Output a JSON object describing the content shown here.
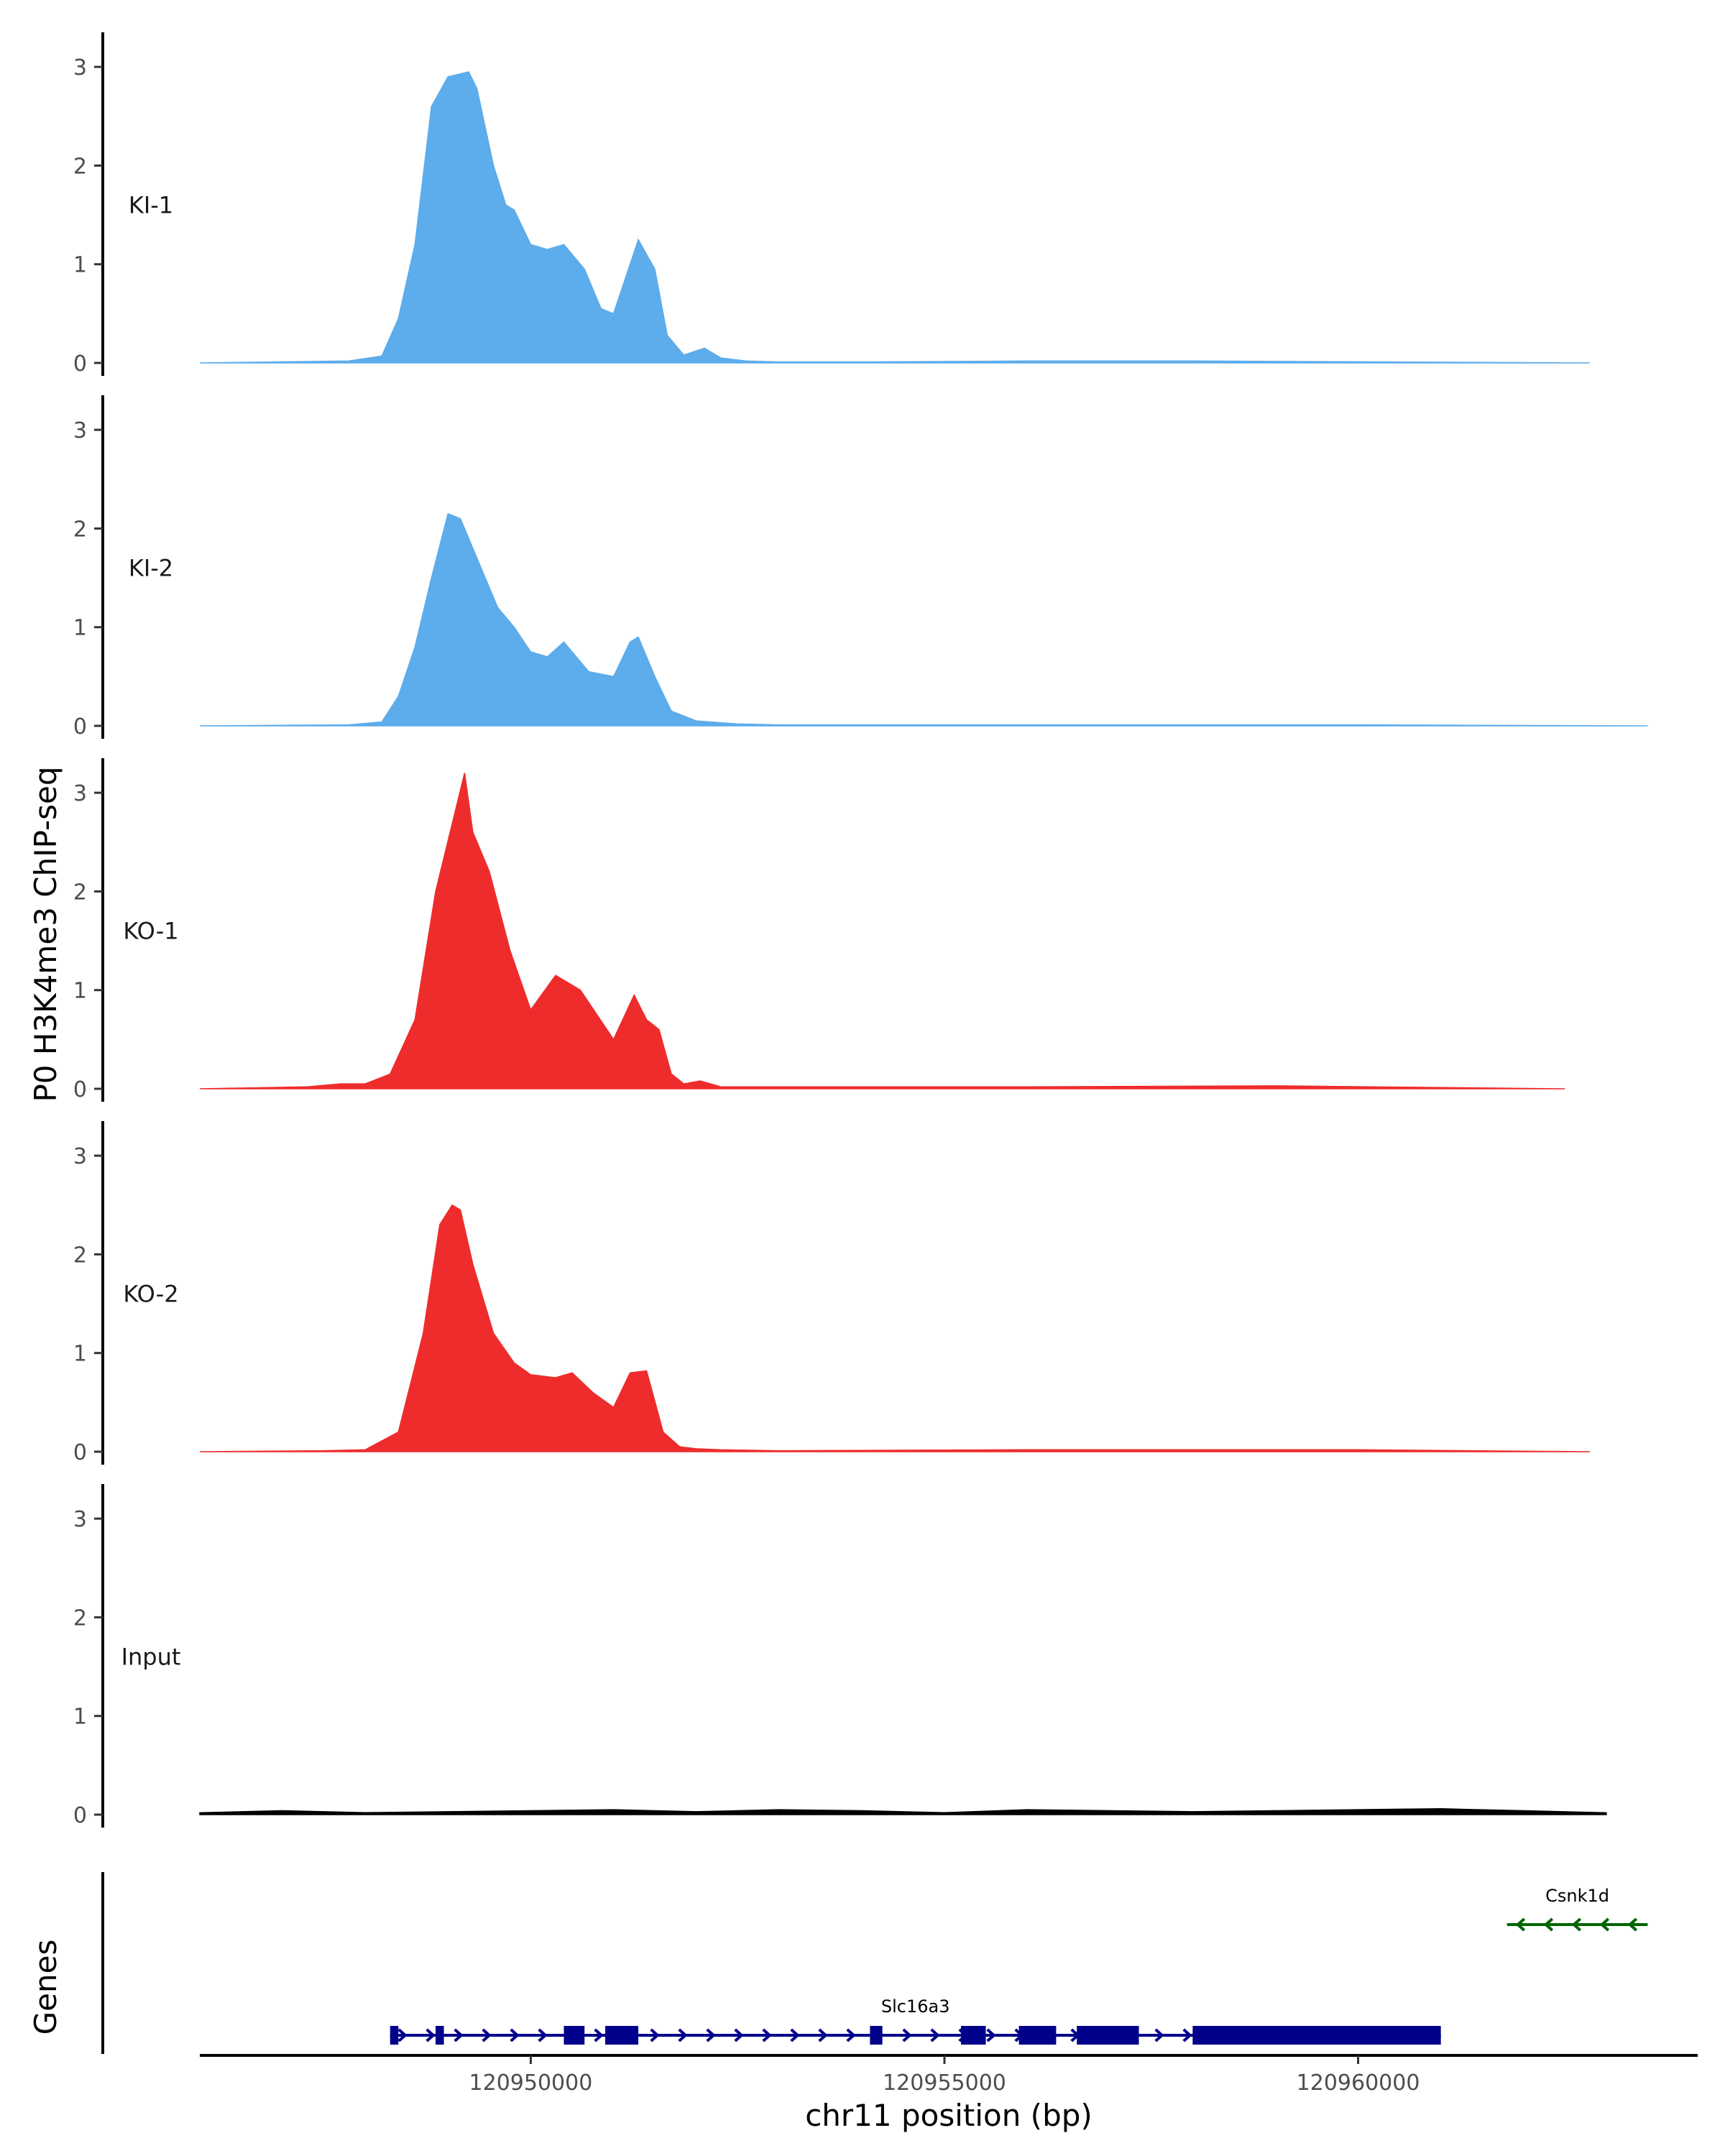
{
  "chart_data": {
    "type": "area",
    "title": "",
    "ylabel": "P0 H3K4me3 ChIP-seq",
    "xlabel": "chr11 position (bp)",
    "genes_label": "Genes",
    "ylim": [
      0,
      3.3
    ],
    "yticks": [
      0,
      1,
      2,
      3
    ],
    "xlim": [
      120946000,
      120964000
    ],
    "xticks": [
      120950000,
      120955000,
      120960000
    ],
    "xtick_labels": [
      "120950000",
      "120955000",
      "120960000"
    ],
    "tracks": [
      {
        "name": "KI-1",
        "color": "#5daceb",
        "x": [
          120946000,
          120947800,
          120948200,
          120948400,
          120948600,
          120948800,
          120949000,
          120949100,
          120949250,
          120949350,
          120949550,
          120949700,
          120949800,
          120950000,
          120950200,
          120950400,
          120950650,
          120950850,
          120951000,
          120951300,
          120951500,
          120951650,
          120951850,
          120952100,
          120952300,
          120952600,
          120953000,
          120954000,
          120956000,
          120958000,
          120962800
        ],
        "values": [
          0,
          0.02,
          0.07,
          0.45,
          1.2,
          2.6,
          2.9,
          2.92,
          2.95,
          2.78,
          2.0,
          1.6,
          1.55,
          1.2,
          1.15,
          1.2,
          0.95,
          0.55,
          0.5,
          1.25,
          0.95,
          0.28,
          0.08,
          0.15,
          0.05,
          0.02,
          0.01,
          0.01,
          0.02,
          0.02,
          0
        ]
      },
      {
        "name": "KI-2",
        "color": "#5daceb",
        "x": [
          120946000,
          120947800,
          120948200,
          120948400,
          120948600,
          120948800,
          120949000,
          120949150,
          120949350,
          120949600,
          120949800,
          120950000,
          120950200,
          120950400,
          120950500,
          120950700,
          120951000,
          120951200,
          120951300,
          120951500,
          120951700,
          120952000,
          120952500,
          120953000,
          120956000,
          120960000,
          120963500
        ],
        "values": [
          0,
          0.01,
          0.04,
          0.3,
          0.8,
          1.5,
          2.15,
          2.1,
          1.7,
          1.2,
          1.0,
          0.75,
          0.7,
          0.85,
          0.75,
          0.55,
          0.5,
          0.85,
          0.9,
          0.5,
          0.15,
          0.05,
          0.02,
          0.01,
          0.01,
          0.01,
          0
        ]
      },
      {
        "name": "KO-1",
        "color": "#ee2c2c",
        "x": [
          120946000,
          120947300,
          120947700,
          120948000,
          120948300,
          120948600,
          120948850,
          120949200,
          120949300,
          120949500,
          120949750,
          120950000,
          120950300,
          120950600,
          120951000,
          120951250,
          120951400,
          120951550,
          120951700,
          120951850,
          120952050,
          120952300,
          120953000,
          120956000,
          120959000,
          120962500
        ],
        "values": [
          0,
          0.02,
          0.05,
          0.05,
          0.15,
          0.7,
          2.0,
          3.2,
          2.6,
          2.2,
          1.4,
          0.8,
          1.15,
          1.0,
          0.5,
          0.95,
          0.7,
          0.6,
          0.15,
          0.05,
          0.08,
          0.02,
          0.02,
          0.02,
          0.03,
          0
        ]
      },
      {
        "name": "KO-2",
        "color": "#ee2c2c",
        "x": [
          120946000,
          120947500,
          120948000,
          120948400,
          120948700,
          120948900,
          120949050,
          120949150,
          120949300,
          120949550,
          120949800,
          120950000,
          120950300,
          120950500,
          120950750,
          120951000,
          120951200,
          120951400,
          120951600,
          120951800,
          120952000,
          120952300,
          120953000,
          120956000,
          120960000,
          120962800
        ],
        "values": [
          0,
          0.01,
          0.02,
          0.2,
          1.2,
          2.3,
          2.5,
          2.45,
          1.9,
          1.2,
          0.9,
          0.78,
          0.75,
          0.8,
          0.6,
          0.45,
          0.8,
          0.82,
          0.2,
          0.05,
          0.03,
          0.02,
          0.01,
          0.02,
          0.02,
          0
        ]
      },
      {
        "name": "Input",
        "color": "#000000",
        "x": [
          120946000,
          120947000,
          120948000,
          120949000,
          120950000,
          120951000,
          120952000,
          120953000,
          120954000,
          120955000,
          120956000,
          120957000,
          120958000,
          120959000,
          120960000,
          120961000,
          120962000,
          120963000
        ],
        "values": [
          0.02,
          0.04,
          0.02,
          0.03,
          0.04,
          0.05,
          0.03,
          0.05,
          0.04,
          0.02,
          0.05,
          0.04,
          0.03,
          0.04,
          0.05,
          0.06,
          0.04,
          0.02
        ]
      }
    ],
    "genes": [
      {
        "name": "Slc16a3",
        "strand": "+",
        "color": "#00008b",
        "start": 120948300,
        "end": 120961000,
        "exons": [
          [
            120948300,
            120948400
          ],
          [
            120948850,
            120948950
          ],
          [
            120950400,
            120950650
          ],
          [
            120950900,
            120951300
          ],
          [
            120954100,
            120954250
          ],
          [
            120955200,
            120955500
          ],
          [
            120955900,
            120956350
          ],
          [
            120956600,
            120957350
          ],
          [
            120958000,
            120961000
          ]
        ]
      },
      {
        "name": "Csnk1d",
        "strand": "-",
        "color": "#006400",
        "start": 120961800,
        "end": 120963500,
        "exons": []
      }
    ]
  }
}
